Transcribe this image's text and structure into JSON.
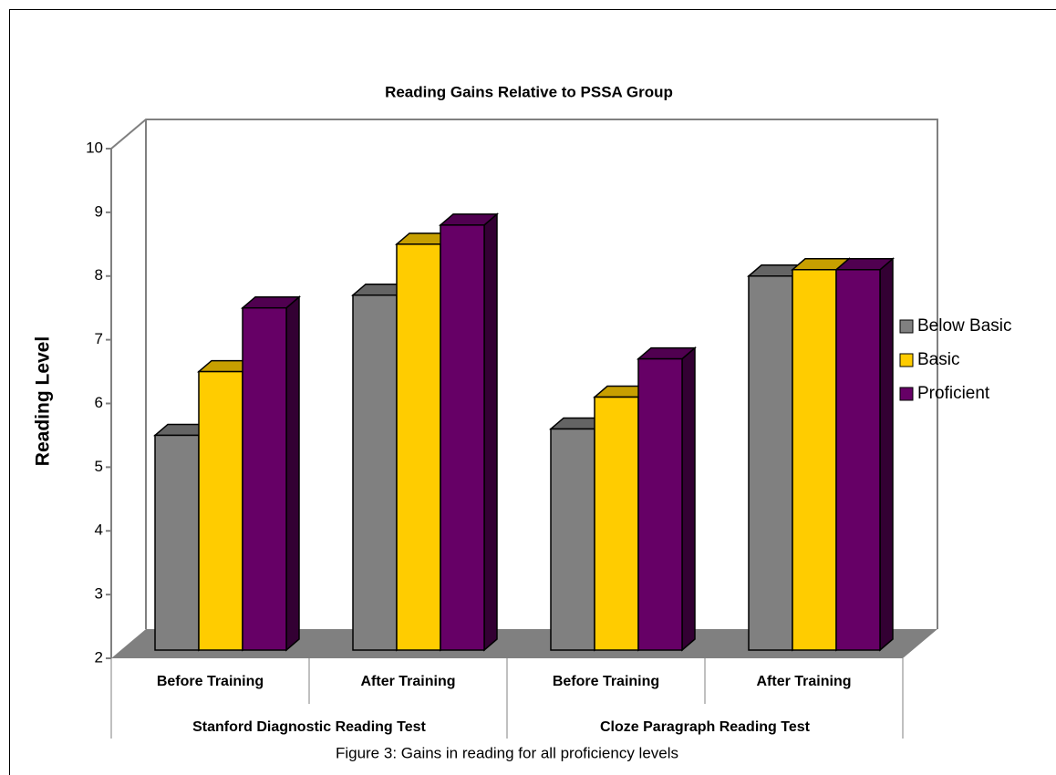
{
  "chart_data": {
    "type": "bar3d",
    "title": "Reading Gains Relative to PSSA Group",
    "ylabel": "Reading Level",
    "caption": "Figure 3: Gains in reading for all proficiency levels",
    "categories": [
      "Before Training",
      "After Training",
      "Before Training",
      "After Training"
    ],
    "groups": [
      "Stanford Diagnostic Reading Test",
      "Cloze Paragraph Reading Test"
    ],
    "series": [
      {
        "name": "Below Basic",
        "color": "#808080",
        "values": [
          5.5,
          7.7,
          5.6,
          8.0
        ]
      },
      {
        "name": "Basic",
        "color": "#ffcc00",
        "values": [
          6.5,
          8.5,
          6.1,
          8.1
        ]
      },
      {
        "name": "Proficient",
        "color": "#660066",
        "values": [
          7.5,
          8.8,
          6.7,
          8.1
        ]
      }
    ],
    "ylim": [
      2,
      10
    ],
    "yticks": [
      2,
      3,
      4,
      5,
      6,
      7,
      8,
      9,
      10
    ]
  }
}
